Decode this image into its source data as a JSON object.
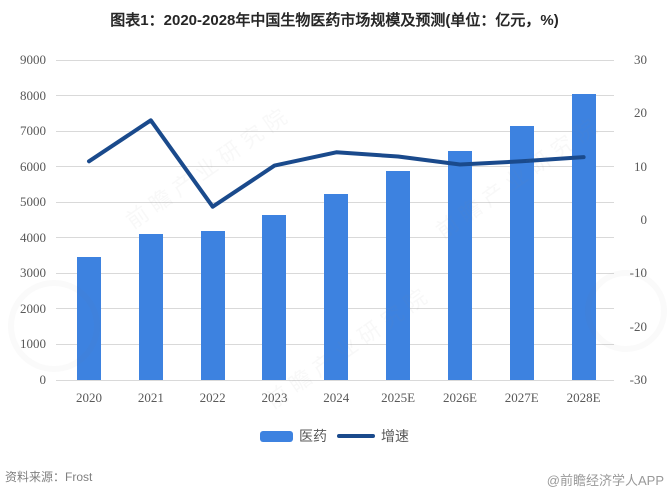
{
  "title": "图表1：2020-2028年中国生物医药市场规模及预测(单位：亿元，%)",
  "footer": {
    "source": "资料来源：Frost",
    "credit": "@前瞻经济学人APP"
  },
  "watermark": {
    "text": "前瞻产业研究院"
  },
  "colors": {
    "bar": "#3d82e0",
    "line": "#1a4a8c",
    "grid": "#d9d9d9",
    "axis_text": "#595959",
    "title_text": "#262626",
    "source_text": "#808080",
    "credit_text": "#999999"
  },
  "chart_data": {
    "type": "bar",
    "subtype": "bar+line-combo",
    "title": "图表1：2020-2028年中国生物医药市场规模及预测(单位：亿元，%)",
    "categories": [
      "2020",
      "2021",
      "2022",
      "2023",
      "2024",
      "2025E",
      "2026E",
      "2027E",
      "2028E"
    ],
    "series": [
      {
        "name": "医药",
        "type": "bar",
        "axis": "left",
        "unit": "亿元",
        "values": [
          3450,
          4100,
          4200,
          4650,
          5220,
          5870,
          6450,
          7150,
          8050
        ]
      },
      {
        "name": "增速",
        "type": "line",
        "axis": "right",
        "unit": "%",
        "values": [
          11.0,
          18.7,
          2.5,
          10.2,
          12.7,
          11.9,
          10.4,
          11.0,
          11.8
        ]
      }
    ],
    "left_axis": {
      "min": 0,
      "max": 9000,
      "step": 1000,
      "ticks": [
        9000,
        8000,
        7000,
        6000,
        5000,
        4000,
        3000,
        2000,
        1000,
        0
      ]
    },
    "right_axis": {
      "min": -30,
      "max": 30,
      "step": 10,
      "ticks": [
        30,
        20,
        10,
        0,
        -10,
        -20,
        -30
      ]
    },
    "legend": [
      {
        "label": "医药",
        "type": "bar"
      },
      {
        "label": "增速",
        "type": "line"
      }
    ],
    "grid": true,
    "legend_position": "bottom"
  }
}
